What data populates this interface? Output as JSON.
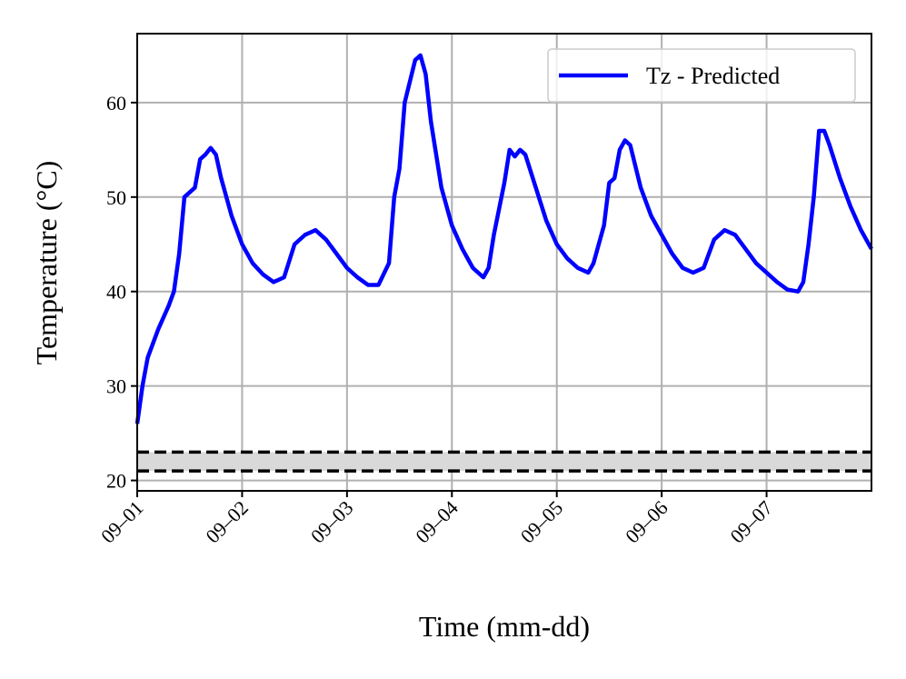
{
  "chart_data": {
    "type": "line",
    "xlabel": "Time (mm-dd)",
    "ylabel": "Temperature (°C)",
    "xlim": [
      0,
      7
    ],
    "xticks": [
      {
        "value": 0,
        "label": "09–01"
      },
      {
        "value": 1,
        "label": "09–02"
      },
      {
        "value": 2,
        "label": "09–03"
      },
      {
        "value": 3,
        "label": "09–04"
      },
      {
        "value": 4,
        "label": "09–05"
      },
      {
        "value": 5,
        "label": "09–06"
      },
      {
        "value": 6,
        "label": "09–07"
      }
    ],
    "ylim": [
      18.9,
      67.3
    ],
    "yticks": [
      20,
      30,
      40,
      50,
      60
    ],
    "grid": true,
    "legend": "upper right",
    "comfort_band": [
      21,
      23
    ],
    "x": [
      0,
      0.05,
      0.1,
      0.2,
      0.3,
      0.35,
      0.4,
      0.45,
      0.5,
      0.55,
      0.6,
      0.65,
      0.7,
      0.75,
      0.8,
      0.9,
      1.0,
      1.1,
      1.2,
      1.3,
      1.4,
      1.5,
      1.6,
      1.7,
      1.8,
      1.9,
      2.0,
      2.1,
      2.2,
      2.3,
      2.4,
      2.45,
      2.5,
      2.55,
      2.65,
      2.7,
      2.75,
      2.8,
      2.9,
      3.0,
      3.1,
      3.2,
      3.3,
      3.35,
      3.4,
      3.5,
      3.55,
      3.6,
      3.65,
      3.7,
      3.8,
      3.9,
      4.0,
      4.1,
      4.2,
      4.3,
      4.35,
      4.45,
      4.5,
      4.55,
      4.6,
      4.65,
      4.7,
      4.8,
      4.9,
      5.0,
      5.1,
      5.2,
      5.3,
      5.4,
      5.45,
      5.5,
      5.6,
      5.7,
      5.8,
      5.9,
      6.0,
      6.1,
      6.2,
      6.3,
      6.35,
      6.4,
      6.45,
      6.5,
      6.55,
      6.6,
      6.7,
      6.8,
      6.9,
      7.0
    ],
    "series": [
      {
        "name": "Tz - Predicted",
        "color": "#0000ff",
        "values": [
          26,
          30,
          33,
          36,
          38.5,
          40,
          44,
          50,
          50.5,
          51,
          54,
          54.5,
          55.2,
          54.5,
          52,
          48,
          45,
          43,
          41.8,
          41,
          41.5,
          45,
          46,
          46.5,
          45.5,
          44,
          42.5,
          41.5,
          40.7,
          40.7,
          43,
          50,
          53,
          60,
          64.5,
          65,
          63,
          58,
          51,
          47,
          44.5,
          42.5,
          41.5,
          42.5,
          46,
          51.5,
          55,
          54.3,
          55,
          54.5,
          51,
          47.5,
          45,
          43.5,
          42.5,
          42,
          43,
          47,
          51.5,
          52,
          55,
          56,
          55.5,
          51,
          48,
          46,
          44,
          42.5,
          42,
          42.5,
          44,
          45.5,
          46.5,
          46,
          44.5,
          43,
          42,
          41,
          40.2,
          40,
          41,
          45,
          50,
          57,
          57,
          55.5,
          52,
          49,
          46.5,
          44.5
        ]
      }
    ]
  }
}
